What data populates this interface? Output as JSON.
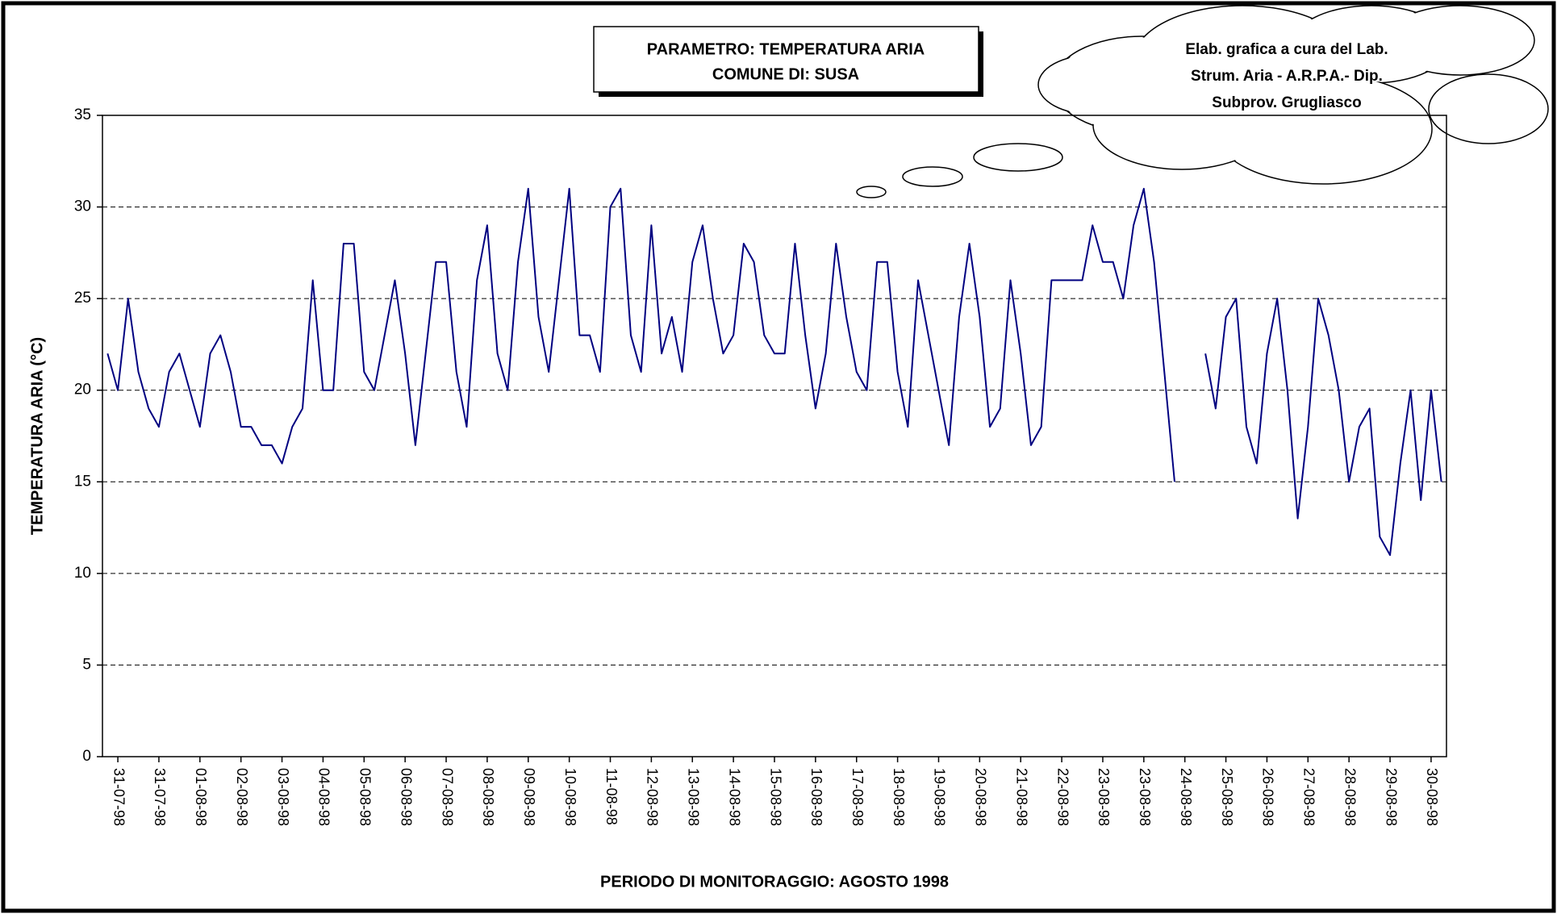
{
  "chart_data": {
    "type": "line",
    "title": [
      "PARAMETRO: TEMPERATURA ARIA",
      "COMUNE DI: SUSA"
    ],
    "annotation": [
      "Elab. grafica a cura del Lab.",
      "Strum. Aria - A.R.P.A.- Dip.",
      "Subprov. Grugliasco"
    ],
    "x_label": "PERIODO DI MONITORAGGIO: AGOSTO 1998",
    "y_label": "TEMPERATURA ARIA (°C)",
    "categories": [
      null,
      "31-07-98",
      null,
      null,
      null,
      "31-07-98",
      null,
      null,
      null,
      "01-08-98",
      null,
      null,
      null,
      "02-08-98",
      null,
      null,
      null,
      "03-08-98",
      null,
      null,
      null,
      "04-08-98",
      null,
      null,
      null,
      "05-08-98",
      null,
      null,
      null,
      "06-08-98",
      null,
      null,
      null,
      "07-08-98",
      null,
      null,
      null,
      "08-08-98",
      null,
      null,
      null,
      "09-08-98",
      null,
      null,
      null,
      "10-08-98",
      null,
      null,
      null,
      "11-08-98",
      null,
      null,
      null,
      "12-08-98",
      null,
      null,
      null,
      "13-08-98",
      null,
      null,
      null,
      "14-08-98",
      null,
      null,
      null,
      "15-08-98",
      null,
      null,
      null,
      "16-08-98",
      null,
      null,
      null,
      "17-08-98",
      null,
      null,
      null,
      "18-08-98",
      null,
      null,
      null,
      "19-08-98",
      null,
      null,
      null,
      "20-08-98",
      null,
      null,
      null,
      "21-08-98",
      null,
      null,
      null,
      "22-08-98",
      null,
      null,
      null,
      "23-08-98",
      null,
      null,
      null,
      "23-08-98",
      null,
      null,
      null,
      "24-08-98",
      null,
      null,
      null,
      "25-08-98",
      null,
      null,
      null,
      "26-08-98",
      null,
      null,
      null,
      "27-08-98",
      null,
      null,
      null,
      "28-08-98",
      null,
      null,
      null,
      "29-08-98",
      null,
      null,
      null,
      "30-08-98",
      null
    ],
    "values": [
      22,
      20,
      25,
      21,
      19,
      18,
      21,
      22,
      20,
      18,
      22,
      23,
      21,
      18,
      18,
      17,
      17,
      16,
      18,
      19,
      26,
      20,
      20,
      28,
      28,
      21,
      20,
      23,
      26,
      22,
      17,
      22,
      27,
      27,
      21,
      18,
      26,
      29,
      22,
      20,
      27,
      31,
      24,
      21,
      26,
      31,
      23,
      23,
      21,
      30,
      31,
      23,
      21,
      29,
      22,
      24,
      21,
      27,
      29,
      25,
      22,
      23,
      28,
      27,
      23,
      22,
      22,
      28,
      23,
      19,
      22,
      28,
      24,
      21,
      20,
      27,
      27,
      21,
      18,
      26,
      23,
      20,
      17,
      24,
      28,
      24,
      18,
      19,
      26,
      22,
      17,
      18,
      26,
      26,
      26,
      26,
      29,
      27,
      27,
      25,
      29,
      31,
      27,
      21,
      15,
      null,
      null,
      22,
      19,
      24,
      25,
      18,
      16,
      22,
      25,
      20,
      13,
      18,
      25,
      23,
      20,
      15,
      18,
      19,
      12,
      11,
      16,
      20,
      14,
      20,
      15
    ],
    "color": "#000080",
    "ylim": [
      0,
      35
    ],
    "yticks": [
      0,
      5,
      10,
      15,
      20,
      25,
      30,
      35
    ],
    "grid": true
  }
}
